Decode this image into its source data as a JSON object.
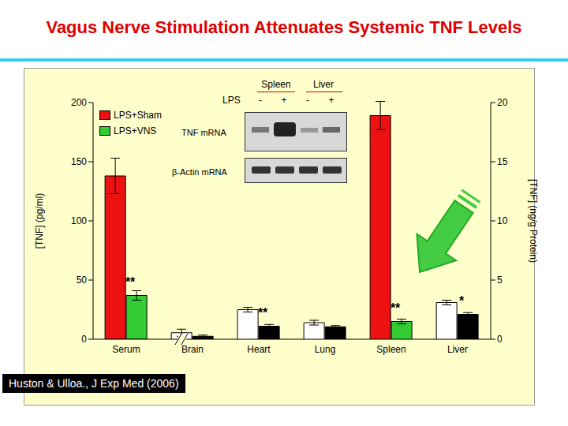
{
  "chart_data": {
    "type": "bar",
    "title": "Vagus Nerve Stimulation Attenuates Systemic TNF Levels",
    "citation": "Huston & Ulloa., J Exp Med (2006)",
    "y_label": "[TNF] (pg/ml)",
    "y2_label": "[TNF] (ng/g Protein)",
    "categories": [
      "Serum",
      "Brain",
      "Heart",
      "Lung",
      "Spleen",
      "Liver"
    ],
    "ylim": [
      0,
      200
    ],
    "yticks": [
      0,
      50,
      100,
      150,
      200
    ],
    "y2lim": [
      0,
      20
    ],
    "y2ticks": [
      0,
      5,
      10,
      15,
      20
    ],
    "legend": "upper left",
    "series": [
      {
        "name": "LPS+Sham",
        "axis": "y",
        "color": "#ee1111",
        "values": [
          138,
          null,
          null,
          null,
          null,
          null
        ],
        "errors": [
          15,
          null,
          null,
          null,
          null,
          null
        ]
      },
      {
        "name": "LPS+VNS",
        "axis": "y",
        "color": "#33cc33",
        "values": [
          37,
          null,
          null,
          null,
          null,
          null
        ],
        "errors": [
          4,
          null,
          null,
          null,
          null,
          null
        ],
        "significance": [
          "**",
          null,
          null,
          null,
          null,
          null
        ]
      },
      {
        "name": "LPS+Sham",
        "axis": "y2",
        "colors": [
          "#ffffff",
          "#ffffff",
          "#ffffff",
          "#ffffff",
          "#ee1111",
          "#ffffff"
        ],
        "values": [
          null,
          0.55,
          2.5,
          1.4,
          18.9,
          3.1
        ],
        "errors": [
          null,
          0.3,
          0.2,
          0.2,
          1.2,
          0.2
        ]
      },
      {
        "name": "LPS+VNS",
        "axis": "y2",
        "colors": [
          "#000000",
          "#000000",
          "#000000",
          "#000000",
          "#33cc33",
          "#000000"
        ],
        "values": [
          null,
          0.25,
          1.1,
          1.05,
          1.5,
          2.1
        ],
        "errors": [
          null,
          0.1,
          0.15,
          0.1,
          0.2,
          0.15
        ],
        "significance": [
          null,
          null,
          "**",
          null,
          "**",
          "*"
        ]
      }
    ],
    "inset": {
      "header": [
        "Spleen",
        "Liver"
      ],
      "row_label": "LPS",
      "lps": [
        "-",
        "+",
        "-",
        "+"
      ],
      "rows": [
        "TNF mRNA",
        "β-Actin mRNA"
      ]
    }
  }
}
